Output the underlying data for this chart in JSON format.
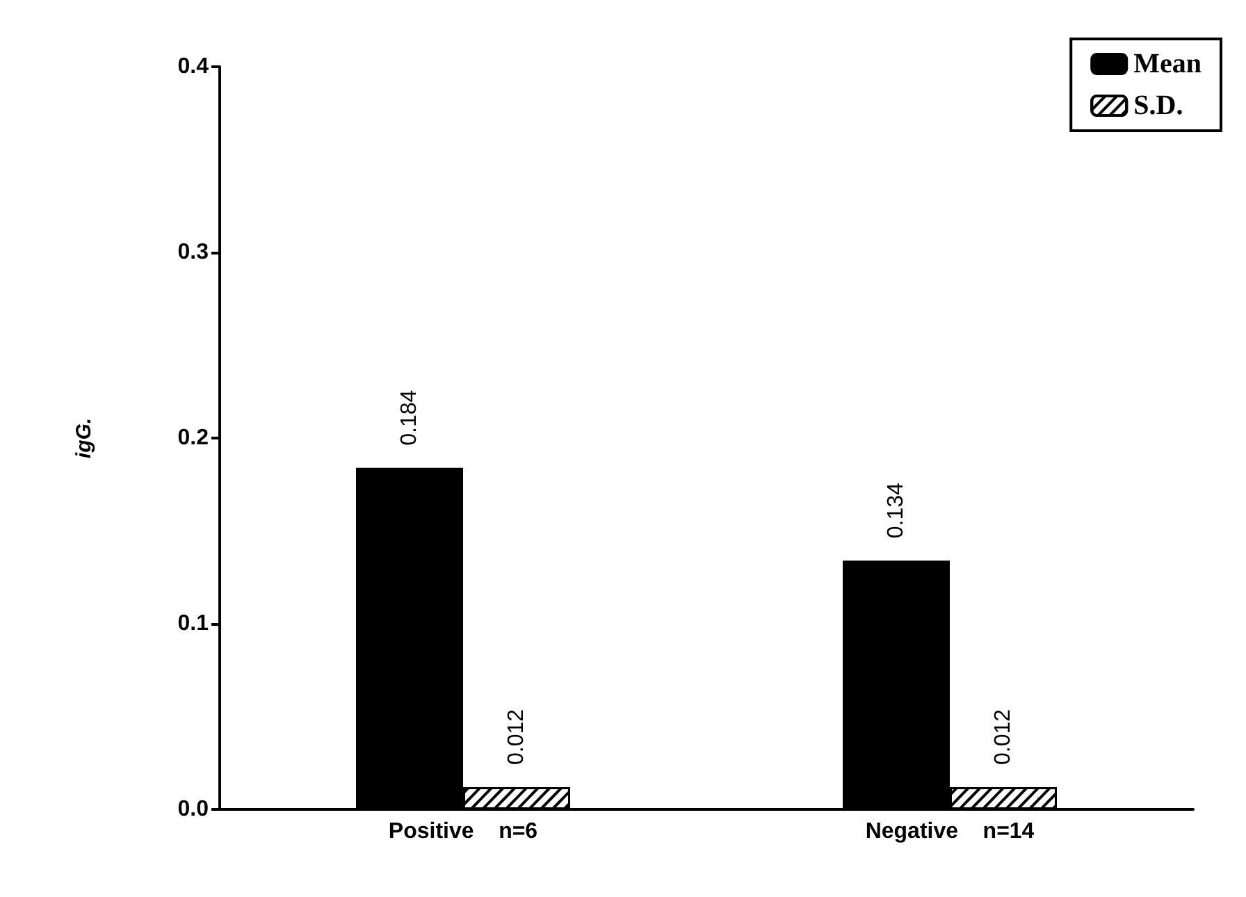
{
  "chart_data": {
    "type": "bar",
    "ylabel": "igG.",
    "categories": [
      "Positive    n=6",
      "Negative    n=14"
    ],
    "series": [
      {
        "name": "Mean",
        "color": "#000000",
        "values": [
          0.184,
          0.134
        ]
      },
      {
        "name": "S.D.",
        "color": "#ffffff",
        "values": [
          0.012,
          0.012
        ]
      }
    ],
    "ylim": [
      0,
      0.4
    ],
    "yticks": [
      {
        "value": 0,
        "label": "0.0"
      },
      {
        "value": 0.1,
        "label": "0.1"
      },
      {
        "value": 0.2,
        "label": "0.2"
      },
      {
        "value": 0.3,
        "label": "0.3"
      },
      {
        "value": 0.4,
        "label": "0.4"
      }
    ],
    "data_labels": true,
    "legend": "top right",
    "grid": false
  }
}
